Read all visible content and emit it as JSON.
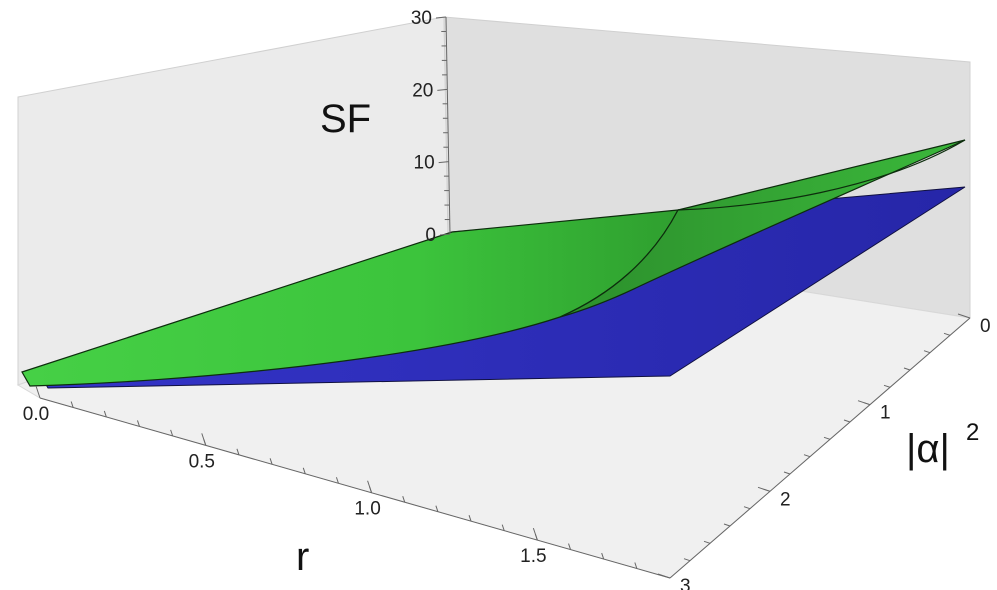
{
  "chart_data": {
    "type": "surface3d",
    "title": "",
    "axes": {
      "x": {
        "label": "r",
        "range": [
          0,
          1.9
        ],
        "ticks": [
          "0.0",
          "0.5",
          "1.0",
          "1.5"
        ]
      },
      "y": {
        "label": "|α|",
        "label_exponent": "2",
        "range": [
          0,
          3
        ],
        "ticks": [
          "0",
          "1",
          "2",
          "3"
        ]
      },
      "z": {
        "label": "SF",
        "range": [
          0,
          30
        ],
        "ticks": [
          "0",
          "10",
          "20",
          "30"
        ]
      }
    },
    "series": [
      {
        "color": "#3ac43a",
        "corner_values": {
          "r0_a0": 0,
          "r0_a3": 0,
          "rmax_a0": 17,
          "rmax_a3": 1
        }
      },
      {
        "color": "#2b2bb8",
        "corner_values": {
          "r0_a0": 0,
          "r0_a3": 0,
          "rmax_a0": 10,
          "rmax_a3": 0
        }
      }
    ],
    "background": "#e5e5e5"
  }
}
